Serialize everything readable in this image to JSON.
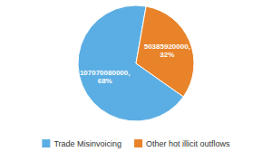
{
  "chart_data": {
    "type": "pie",
    "categories": [
      "Trade Misinvoicing",
      "Other hot illicit outflows"
    ],
    "values": [
      107070080000,
      50385920000
    ],
    "value_labels": [
      "107070080000,\n68%",
      "50385920000,\n32%"
    ],
    "colors": [
      "#5baee3",
      "#e8832a"
    ],
    "data_labels": true,
    "legend": "bottom"
  }
}
